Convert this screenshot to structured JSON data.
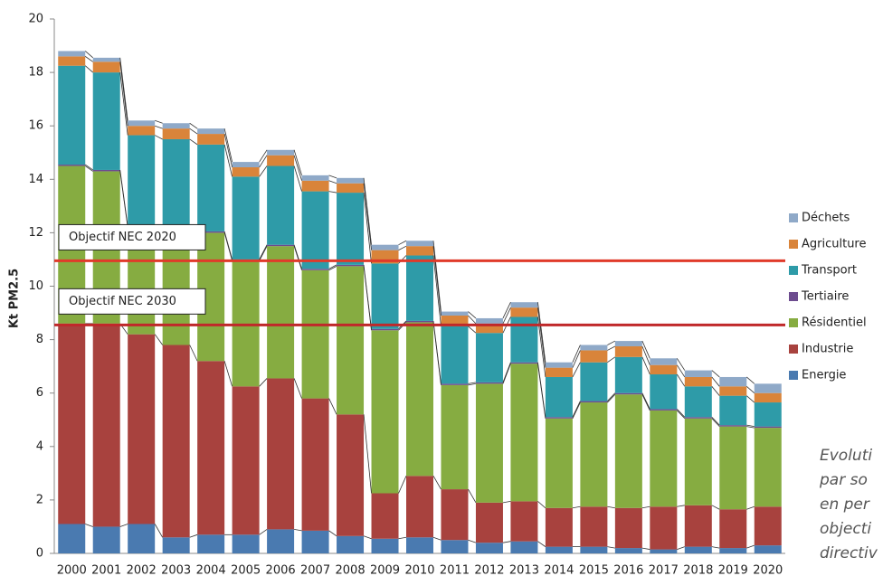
{
  "chart_data": {
    "type": "stacked_bar",
    "y_label": "Kt PM2.5",
    "categories": [
      "2000",
      "2001",
      "2002",
      "2003",
      "2004",
      "2005",
      "2006",
      "2007",
      "2008",
      "2009",
      "2010",
      "2011",
      "2012",
      "2013",
      "2014",
      "2015",
      "2016",
      "2017",
      "2018",
      "2019",
      "2020"
    ],
    "series": [
      {
        "name": "Energie",
        "color": "#4a7ab0",
        "values": [
          1.1,
          1.0,
          1.1,
          0.6,
          0.7,
          0.7,
          0.9,
          0.85,
          0.65,
          0.55,
          0.6,
          0.5,
          0.4,
          0.45,
          0.25,
          0.25,
          0.2,
          0.15,
          0.25,
          0.2,
          0.3
        ]
      },
      {
        "name": "Industrie",
        "color": "#a8423e",
        "values": [
          7.5,
          7.6,
          7.1,
          7.2,
          6.5,
          5.55,
          5.65,
          4.95,
          4.55,
          1.7,
          2.3,
          1.9,
          1.5,
          1.5,
          1.45,
          1.5,
          1.5,
          1.6,
          1.55,
          1.45,
          1.45
        ]
      },
      {
        "name": "Résidentiel",
        "color": "#86ac41",
        "values": [
          5.9,
          5.7,
          4.0,
          4.4,
          4.8,
          4.7,
          4.95,
          4.8,
          5.55,
          6.1,
          5.75,
          3.9,
          4.45,
          5.15,
          3.35,
          3.9,
          4.25,
          3.6,
          3.25,
          3.1,
          2.95
        ]
      },
      {
        "name": "Tertiaire",
        "color": "#6d4c8f",
        "values": [
          0.05,
          0.05,
          0.05,
          0.05,
          0.05,
          0.05,
          0.05,
          0.05,
          0.05,
          0.05,
          0.05,
          0.05,
          0.05,
          0.05,
          0.05,
          0.05,
          0.05,
          0.05,
          0.05,
          0.05,
          0.05
        ]
      },
      {
        "name": "Transport",
        "color": "#2e9ba8",
        "values": [
          3.7,
          3.65,
          3.4,
          3.25,
          3.25,
          3.1,
          2.95,
          2.9,
          2.7,
          2.45,
          2.45,
          2.15,
          1.85,
          1.7,
          1.5,
          1.45,
          1.35,
          1.3,
          1.15,
          1.1,
          0.9
        ]
      },
      {
        "name": "Agriculture",
        "color": "#d9843a",
        "values": [
          0.35,
          0.4,
          0.35,
          0.4,
          0.4,
          0.35,
          0.4,
          0.4,
          0.35,
          0.5,
          0.35,
          0.4,
          0.35,
          0.35,
          0.35,
          0.45,
          0.4,
          0.35,
          0.35,
          0.35,
          0.35
        ]
      },
      {
        "name": "Déchets",
        "color": "#8fa9c8",
        "values": [
          0.2,
          0.15,
          0.2,
          0.2,
          0.2,
          0.2,
          0.2,
          0.2,
          0.2,
          0.2,
          0.2,
          0.15,
          0.2,
          0.2,
          0.2,
          0.2,
          0.2,
          0.25,
          0.25,
          0.35,
          0.35
        ]
      }
    ],
    "reference_lines": [
      {
        "label": "Objectif NEC 2020",
        "value": 10.95,
        "color": "#e03a2a"
      },
      {
        "label": "Objectif NEC 2030",
        "value": 8.55,
        "color": "#c0282a"
      }
    ],
    "ylim": [
      0,
      20
    ],
    "yticks": [
      0,
      2,
      4,
      6,
      8,
      10,
      12,
      14,
      16,
      18,
      20
    ],
    "grid": false,
    "legend": "right",
    "annotation": [
      "Evoluti",
      "par so",
      "en per",
      "objecti",
      "directiv"
    ]
  }
}
